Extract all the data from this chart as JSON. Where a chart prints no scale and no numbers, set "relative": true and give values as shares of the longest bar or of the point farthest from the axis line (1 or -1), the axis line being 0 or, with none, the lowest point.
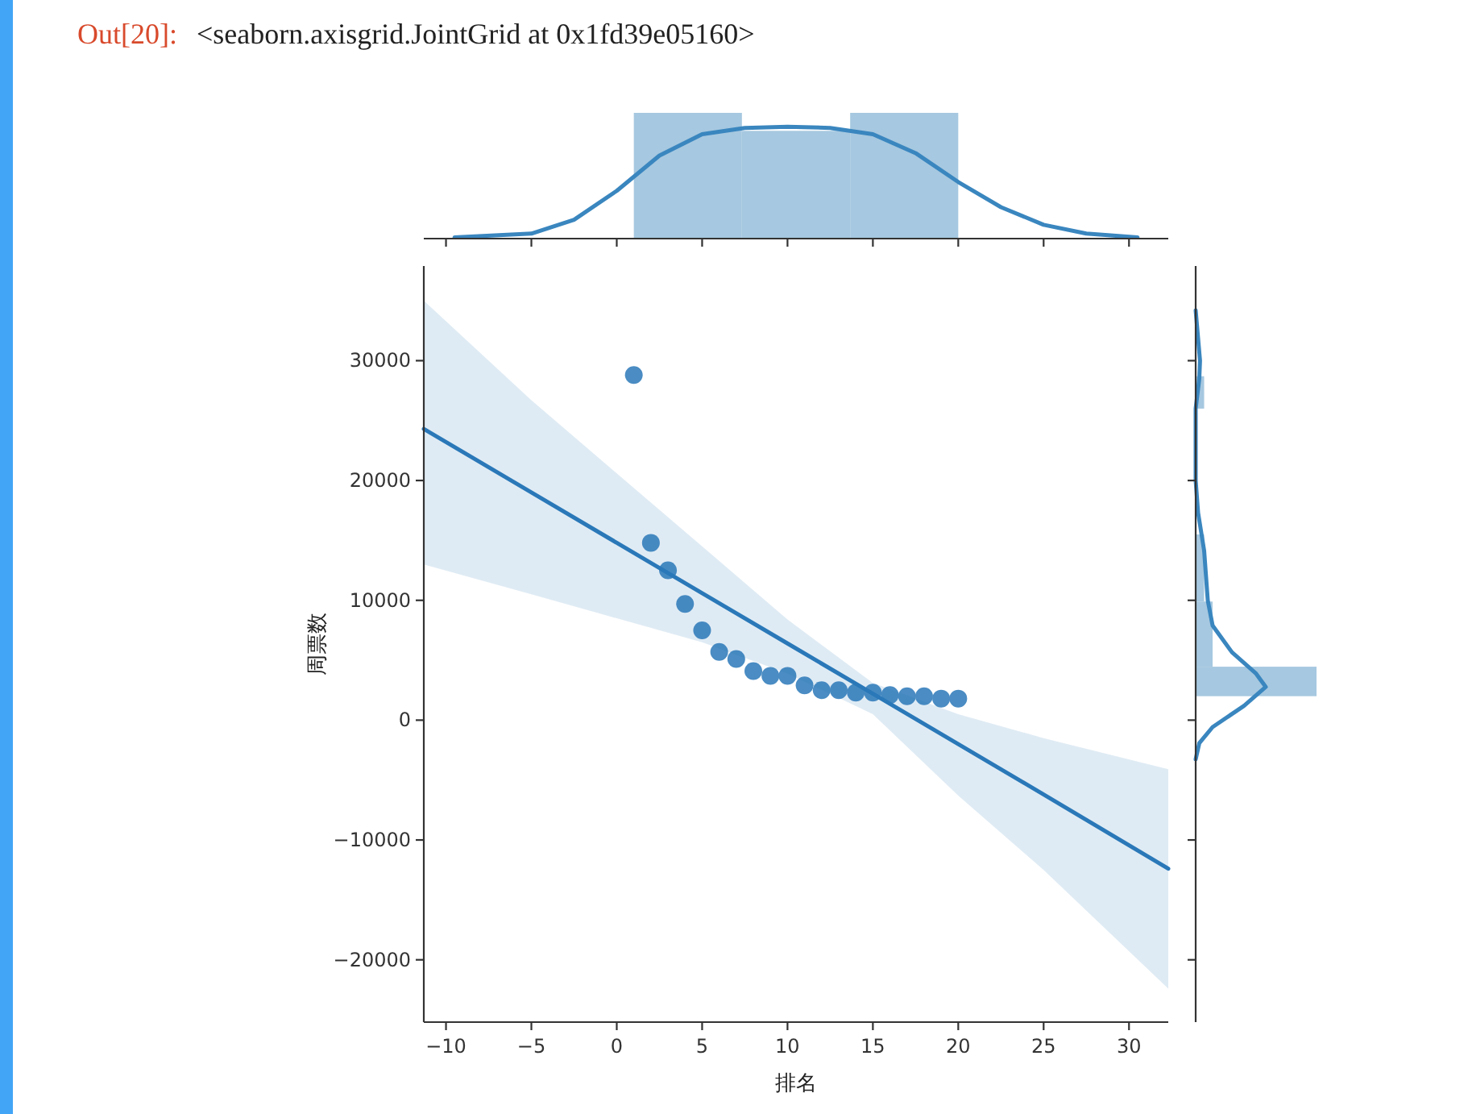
{
  "chart_data": [
    {
      "type": "scatter",
      "xlabel": "排名",
      "ylabel": "周票数",
      "annotations": [
        "Out[20]:",
        "<seaborn.axisgrid.JointGrid at 0x1fd39e05160>"
      ],
      "x": [
        1,
        2,
        3,
        4,
        5,
        6,
        7,
        8,
        9,
        10,
        11,
        12,
        13,
        14,
        15,
        16,
        17,
        18,
        19,
        20
      ],
      "xlim": [
        -11.3,
        32.3
      ],
      "xticks": [
        -10,
        -5,
        0,
        5,
        10,
        15,
        20,
        25,
        30
      ],
      "ylim": [
        -25200,
        37900
      ],
      "yticks": [
        -20000,
        -10000,
        0,
        10000,
        20000,
        30000
      ],
      "grid": false,
      "series": [
        {
          "color": "#4a8cc3",
          "marker": "circle",
          "values": [
            28800,
            14800,
            12500,
            9700,
            7500,
            5700,
            5100,
            4100,
            3700,
            3700,
            2900,
            2500,
            2500,
            2300,
            2300,
            2100,
            2000,
            2000,
            1800,
            1800
          ]
        },
        {
          "type": "line",
          "color": "#2a78b8",
          "x": [
            -11.3,
            -5,
            0,
            5,
            10,
            15,
            20,
            25,
            32.3
          ],
          "marker": "none",
          "values": [
            24300,
            19000,
            14800,
            10600,
            6400,
            2200,
            -2000,
            -6200,
            -12400
          ],
          "lower": [
            13000,
            10500,
            8500,
            6500,
            3900,
            500,
            -6300,
            -12500,
            -22400
          ],
          "upper": [
            35000,
            26700,
            20600,
            14500,
            8400,
            3100,
            500,
            -1500,
            -4100
          ]
        }
      ]
    },
    {
      "type": "histogram",
      "relative": true,
      "color": "#a6c8e0",
      "bins": [
        1,
        7.33,
        13.67,
        20
      ],
      "values": [
        1,
        0.857,
        1
      ],
      "xlim": [
        -11.3,
        32.3
      ],
      "xticks": [
        -10,
        -5,
        0,
        5,
        10,
        15,
        20,
        25,
        30
      ],
      "tick_labels": false,
      "series": [
        {
          "type": "line",
          "color": "#3a86bf",
          "x": [
            -9.5,
            -5,
            -2.5,
            0,
            2.5,
            5,
            7.5,
            10,
            12.5,
            15,
            17.5,
            20,
            22.5,
            25,
            27.5,
            30.5
          ],
          "values": [
            0.01,
            0.04,
            0.15,
            0.38,
            0.66,
            0.83,
            0.88,
            0.89,
            0.88,
            0.83,
            0.68,
            0.45,
            0.25,
            0.11,
            0.04,
            0.01
          ]
        }
      ]
    },
    {
      "type": "histogram",
      "orientation": "horizontal",
      "relative": true,
      "color": "#a6c8e0",
      "bins": [
        2000,
        4460,
        9900,
        15500,
        26000,
        28700
      ],
      "values": [
        1,
        0.14,
        0.07,
        0,
        0.07
      ],
      "ylim": [
        -25200,
        37900
      ],
      "yticks": [
        -20000,
        -10000,
        0,
        10000,
        20000,
        30000
      ],
      "tick_labels": false,
      "series": [
        {
          "type": "line",
          "color": "#3a86bf",
          "x": [
            34200,
            30000,
            28500,
            26000,
            22000,
            20000,
            17300,
            14150,
            10000,
            7900,
            5670,
            3880,
            2770,
            1200,
            -580,
            -1920,
            -3260
          ],
          "values": [
            0,
            0.036,
            0.03,
            0,
            0,
            0,
            0.02,
            0.07,
            0.1,
            0.14,
            0.3,
            0.5,
            0.58,
            0.4,
            0.14,
            0.03,
            0
          ]
        }
      ]
    }
  ]
}
